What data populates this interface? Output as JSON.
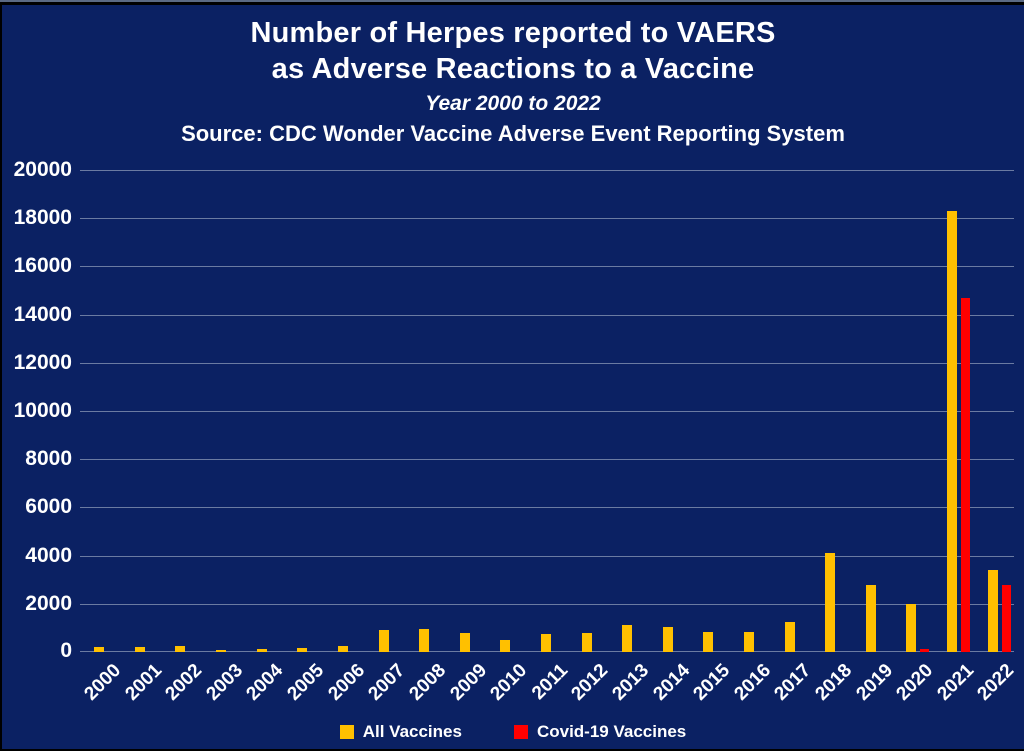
{
  "frame": {
    "background": "#0b2163",
    "text_color": "#ffffff",
    "gridline_color": "#8c99b7"
  },
  "header": {
    "title_line1": "Number of Herpes reported to VAERS",
    "title_line2": "as Adverse Reactions to a Vaccine",
    "subtitle": "Year 2000 to 2022",
    "source": "Source: CDC Wonder Vaccine Adverse Event Reporting System"
  },
  "chart_data": {
    "type": "bar",
    "title": "Number of Herpes reported to VAERS as Adverse Reactions to a Vaccine",
    "subtitle": "Year 2000 to 2022",
    "source": "Source: CDC Wonder Vaccine Adverse Event Reporting System",
    "xlabel": "",
    "ylabel": "",
    "categories": [
      "2000",
      "2001",
      "2002",
      "2003",
      "2004",
      "2005",
      "2006",
      "2007",
      "2008",
      "2009",
      "2010",
      "2011",
      "2012",
      "2013",
      "2014",
      "2015",
      "2016",
      "2017",
      "2018",
      "2019",
      "2020",
      "2021",
      "2022"
    ],
    "series": [
      {
        "name": "All Vaccines",
        "color": "#FFC000",
        "values": [
          190,
          220,
          250,
          60,
          130,
          160,
          260,
          900,
          950,
          790,
          480,
          750,
          790,
          1140,
          1030,
          830,
          830,
          1250,
          4100,
          2770,
          2000,
          18300,
          3400
        ]
      },
      {
        "name": "Covid-19 Vaccines",
        "color": "#FF0000",
        "values": [
          0,
          0,
          0,
          0,
          0,
          0,
          0,
          0,
          0,
          0,
          0,
          0,
          0,
          0,
          0,
          0,
          0,
          0,
          0,
          0,
          120,
          14700,
          2800
        ]
      }
    ],
    "ylim": [
      0,
      20000
    ],
    "ytick_step": 2000,
    "ytick_labels": [
      "0",
      "2000",
      "4000",
      "6000",
      "8000",
      "10000",
      "12000",
      "14000",
      "16000",
      "18000",
      "20000"
    ],
    "grid": true,
    "legend_position": "bottom"
  }
}
